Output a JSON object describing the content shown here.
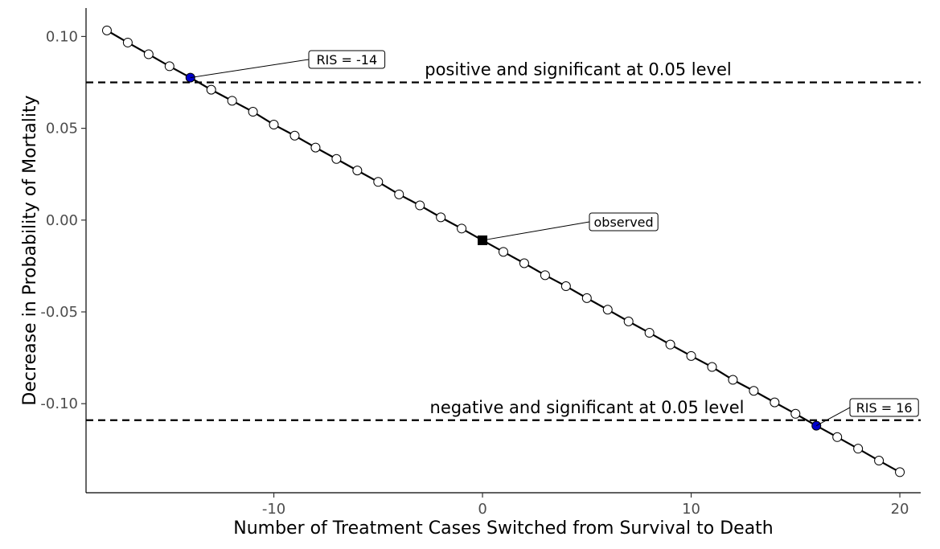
{
  "chart_data": {
    "type": "line",
    "xlabel": "Number of Treatment Cases Switched from Survival to Death",
    "ylabel": "Decrease in Probability of Mortality",
    "xlim": [
      -19,
      21
    ],
    "ylim": [
      -0.1485,
      0.1155
    ],
    "x_ticks": [
      -10,
      0,
      10,
      20
    ],
    "x_tick_labels": [
      "-10",
      "0",
      "10",
      "20"
    ],
    "y_ticks": [
      0.1,
      0.05,
      0.0,
      -0.05,
      -0.1
    ],
    "y_tick_labels": [
      "0.10",
      "0.05",
      "0.00",
      "-0.05",
      "-0.10"
    ],
    "grid": false,
    "series": [
      {
        "x": [
          -18,
          -17,
          -16,
          -15,
          -14,
          -13,
          -12,
          -11,
          -10,
          -9,
          -8,
          -7,
          -6,
          -5,
          -4,
          -3,
          -2,
          -1,
          0,
          1,
          2,
          3,
          4,
          5,
          6,
          7,
          8,
          9,
          10,
          11,
          12,
          13,
          14,
          15,
          16,
          17,
          18,
          19,
          20
        ],
        "y": [
          0.1033,
          0.0967,
          0.0903,
          0.0838,
          0.0776,
          0.071,
          0.065,
          0.059,
          0.052,
          0.046,
          0.0395,
          0.0333,
          0.027,
          0.0208,
          0.014,
          0.008,
          0.0015,
          -0.0046,
          -0.011,
          -0.0173,
          -0.0235,
          -0.03,
          -0.036,
          -0.0425,
          -0.0488,
          -0.0552,
          -0.0614,
          -0.0678,
          -0.074,
          -0.08,
          -0.087,
          -0.093,
          -0.0993,
          -0.1055,
          -0.112,
          -0.1182,
          -0.1245,
          -0.131,
          -0.1373
        ]
      }
    ],
    "highlighted_points": [
      {
        "x": -14,
        "y": 0.0776,
        "label": "RIS = -14",
        "color": "#0000cc"
      },
      {
        "x": 16,
        "y": -0.112,
        "label": "RIS = 16",
        "color": "#0000cc"
      }
    ],
    "observed_point": {
      "x": 0,
      "y": -0.011,
      "label": "observed",
      "color": "#000000"
    },
    "reference_lines": [
      {
        "y": 0.075,
        "label": "positive and significant at 0.05 level"
      },
      {
        "y": -0.109,
        "label": "negative and significant at 0.05 level"
      }
    ]
  }
}
